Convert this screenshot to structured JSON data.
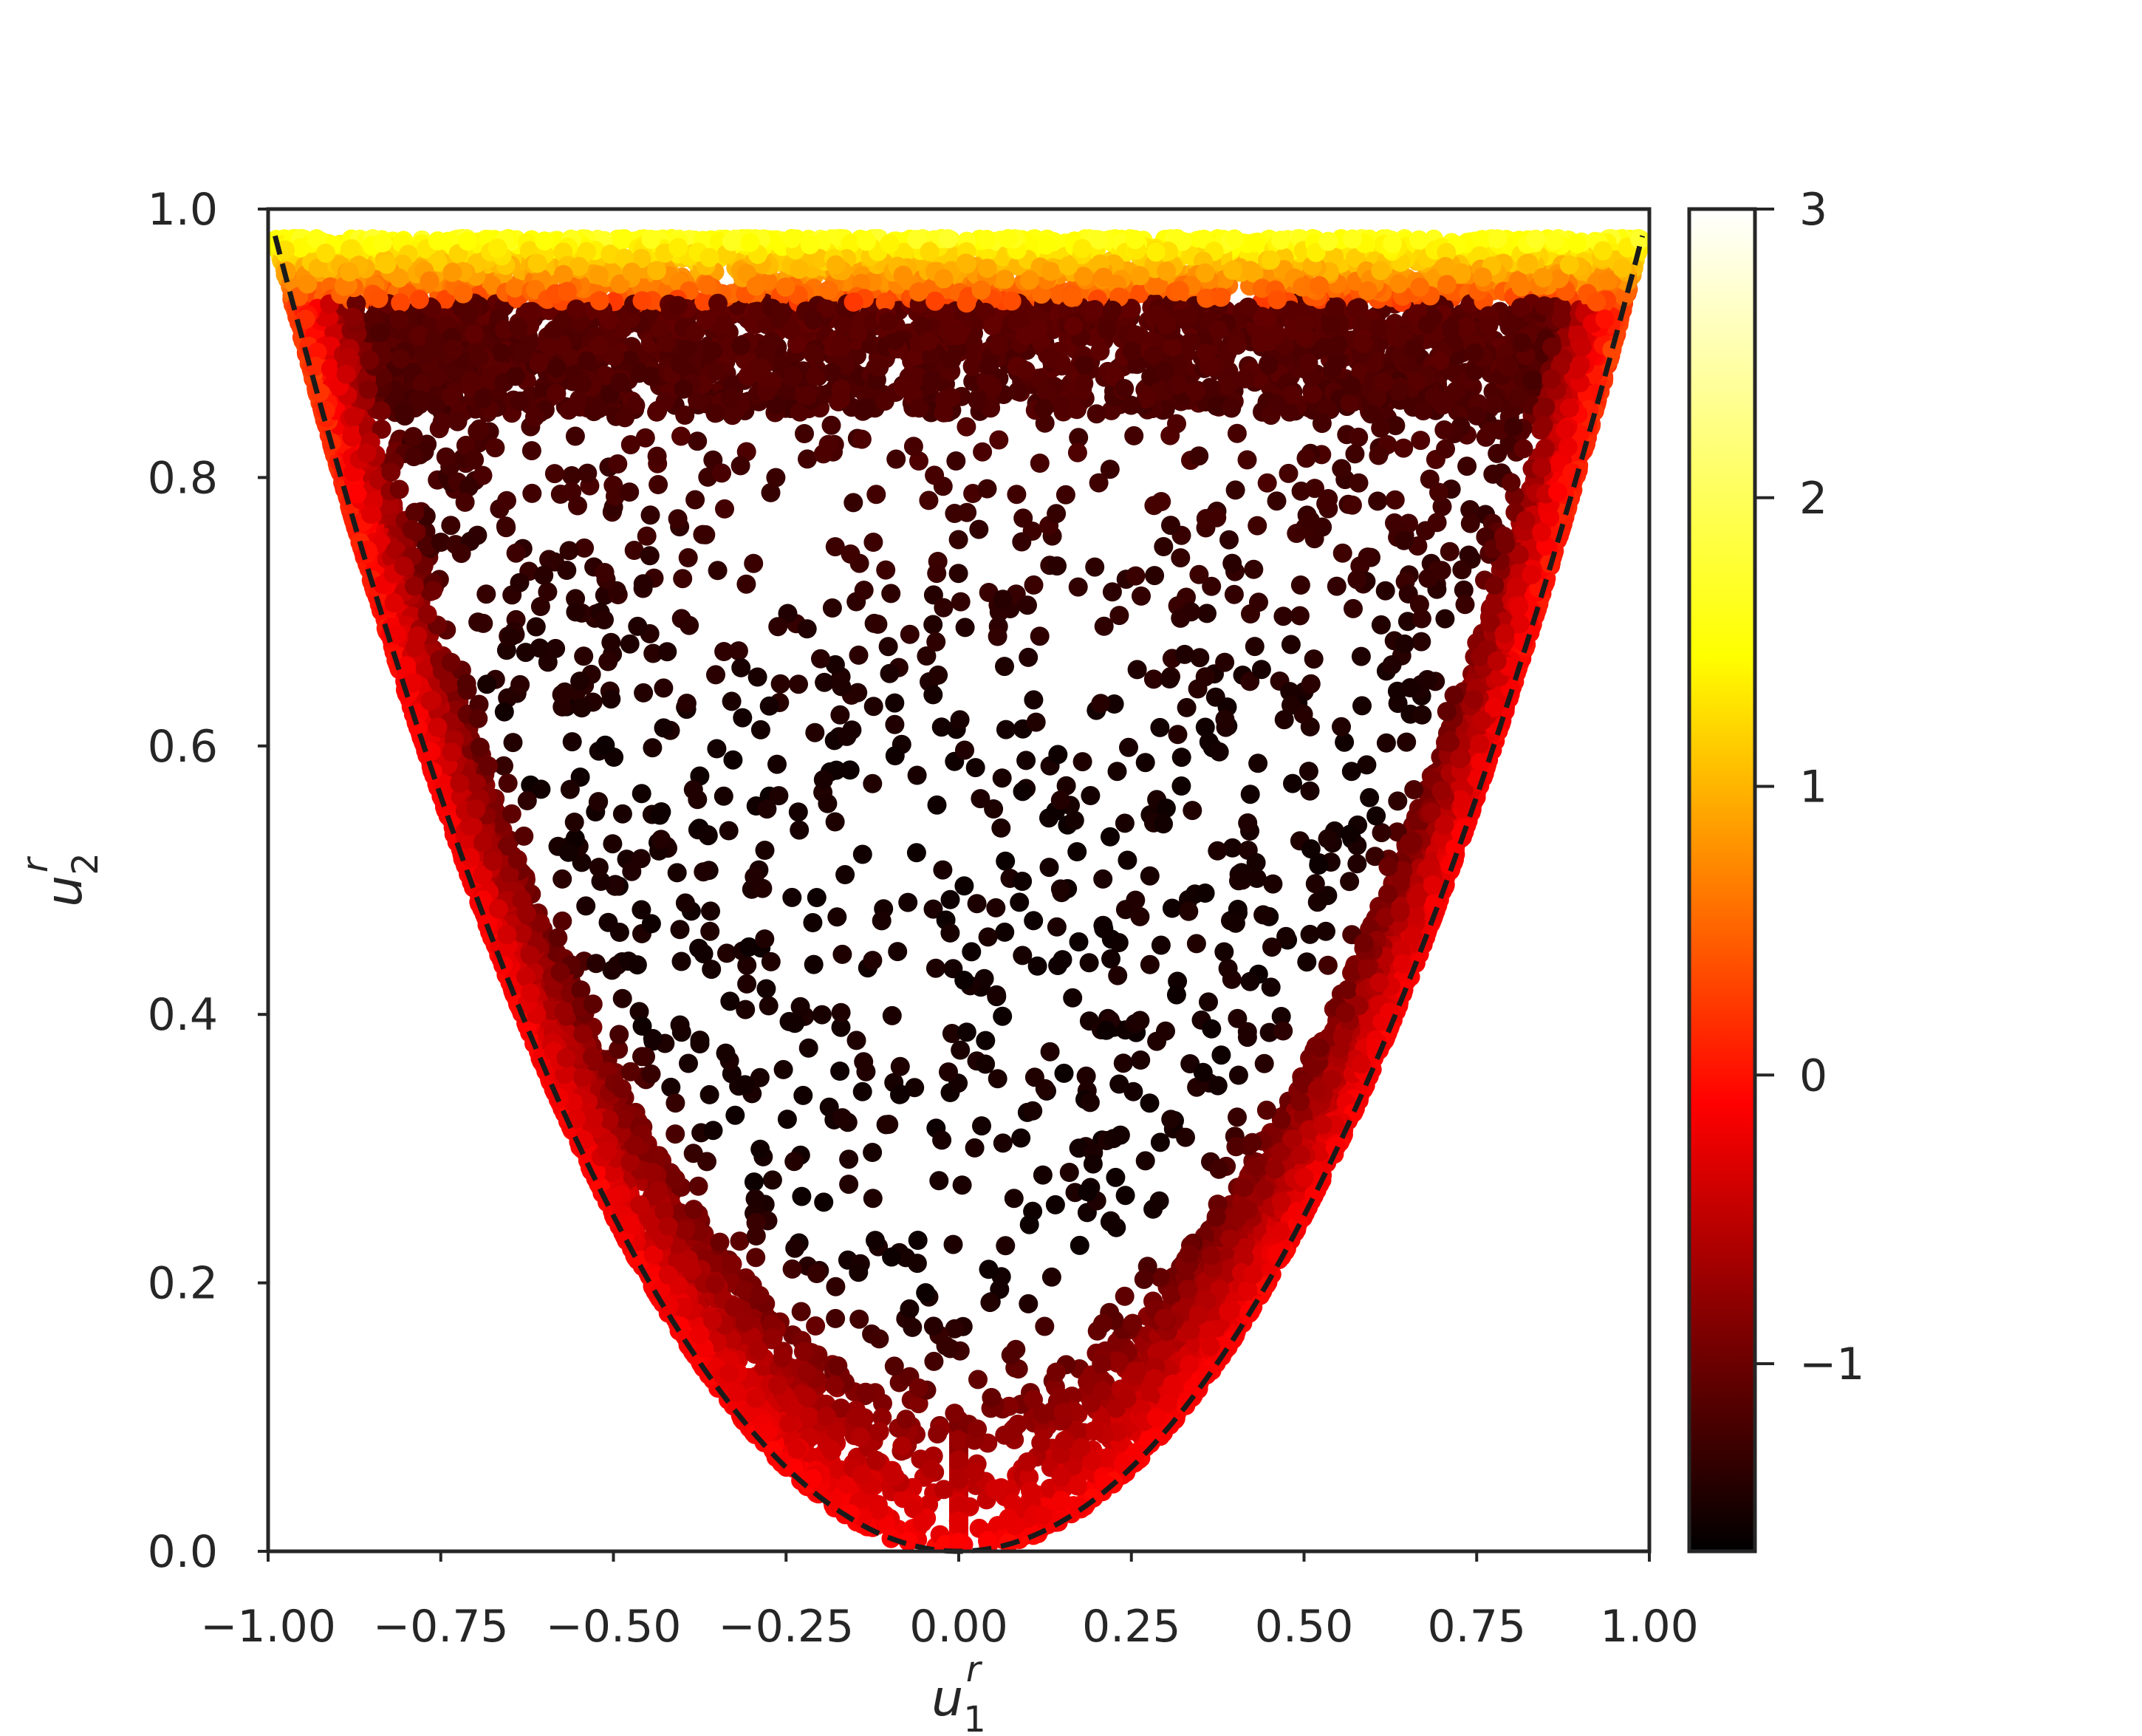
{
  "chart_data": {
    "type": "scatter",
    "xlabel": "u",
    "xlabel_sup": "r",
    "xlabel_sub": "1",
    "ylabel": "u",
    "ylabel_sup": "r",
    "ylabel_sub": "2",
    "xlim": [
      -1.0,
      1.0
    ],
    "ylim": [
      0.0,
      1.0
    ],
    "xticks": [
      "−1.00",
      "−0.75",
      "−0.50",
      "−0.25",
      "0.00",
      "0.25",
      "0.50",
      "0.75",
      "1.00"
    ],
    "xtick_values": [
      -1.0,
      -0.75,
      -0.5,
      -0.25,
      0.0,
      0.25,
      0.5,
      0.75,
      1.0
    ],
    "yticks": [
      "0.0",
      "0.2",
      "0.4",
      "0.6",
      "0.8",
      "1.0"
    ],
    "ytick_values": [
      0.0,
      0.2,
      0.4,
      0.6,
      0.8,
      1.0
    ],
    "boundary_curve": "y = x^2",
    "boundary_style": "black dashed",
    "grid": false,
    "colormap": "hot",
    "colorbar": {
      "range": [
        -1.65,
        3.0
      ],
      "ticks": [
        "−1",
        "0",
        "1",
        "2",
        "3"
      ],
      "tick_values": [
        -1,
        0,
        1,
        2,
        3
      ]
    },
    "point_color_trend": "darkest (about −1.5) in the interior near the bottom-center, red (about 0) near the curve y = x^2, yellow (about 2) near y ≈ 0.98; dense near the curve and the top edge, sparse in the interior"
  }
}
